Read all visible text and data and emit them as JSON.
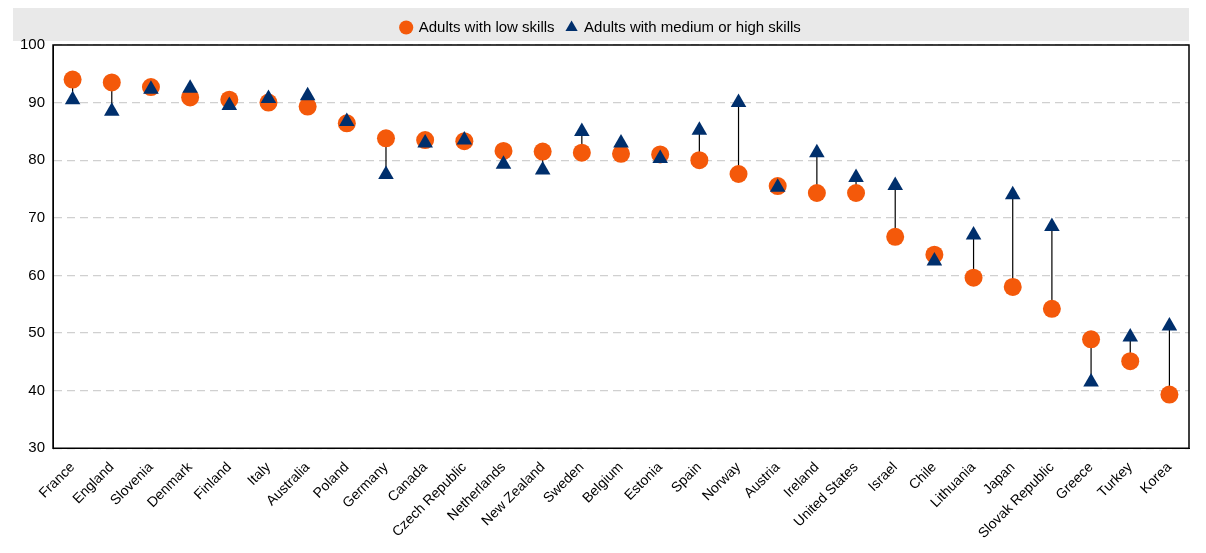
{
  "chart_data": {
    "type": "scatter",
    "categories": [
      "France",
      "England",
      "Slovenia",
      "Denmark",
      "Finland",
      "Italy",
      "Australia",
      "Poland",
      "Germany",
      "Canada",
      "Czech Republic",
      "Netherlands",
      "New Zealand",
      "Sweden",
      "Belgium",
      "Estonia",
      "Spain",
      "Norway",
      "Austria",
      "Ireland",
      "United States",
      "Israel",
      "Chile",
      "Lithuania",
      "Japan",
      "Slovak Republic",
      "Greece",
      "Turkey",
      "Korea"
    ],
    "series": [
      {
        "name": "Adults with low skills",
        "color": "#f4590a",
        "marker": "circle",
        "values": [
          94,
          93.5,
          92.7,
          90.9,
          90.5,
          90,
          89.3,
          86.4,
          83.8,
          83.5,
          83.3,
          81.6,
          81.5,
          81.3,
          81.1,
          81,
          80,
          77.6,
          75.5,
          74.3,
          74.3,
          66.7,
          63.6,
          59.6,
          58,
          54.2,
          48.9,
          45.1,
          39.3
        ]
      },
      {
        "name": "Adults with medium or high skills",
        "color": "#002f6c",
        "marker": "triangle",
        "values": [
          90.5,
          88.5,
          92.3,
          92.5,
          89.5,
          90.7,
          91.2,
          86.7,
          77.5,
          83,
          83.5,
          79.3,
          78.3,
          85,
          83,
          80.3,
          85.2,
          90,
          75.3,
          81.3,
          77,
          75.6,
          62.5,
          67,
          74,
          68.5,
          41.5,
          49.3,
          51.2
        ]
      }
    ],
    "ylim": [
      30,
      100
    ],
    "yticks": [
      30,
      40,
      50,
      60,
      70,
      80,
      90,
      100
    ],
    "grid": "y",
    "legend": "top"
  }
}
